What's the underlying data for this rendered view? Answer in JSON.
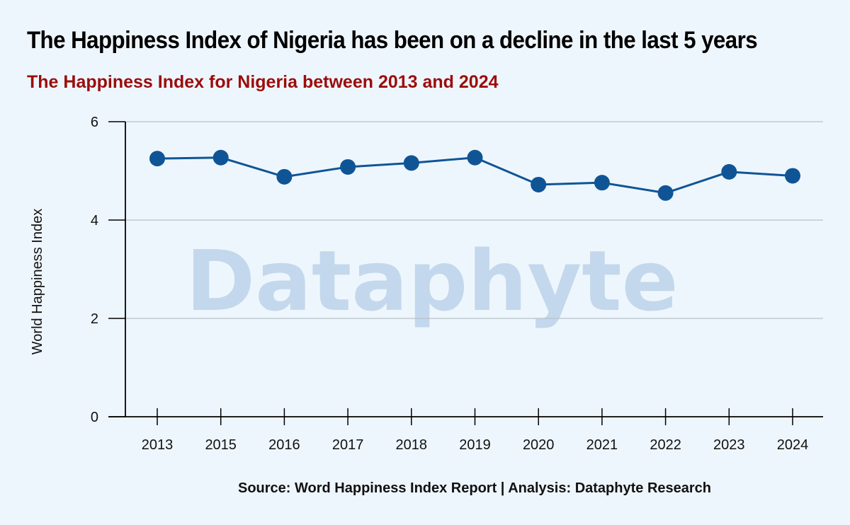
{
  "header": {
    "title": "The Happiness Index of Nigeria has been on a decline in the last 5 years",
    "subtitle": "The Happiness Index for Nigeria between 2013 and 2024"
  },
  "footer": {
    "source": "Source: Word Happiness Index Report | Analysis: Dataphyte Research"
  },
  "watermark": "Dataphyte",
  "colors": {
    "line": "#0f5596",
    "marker": "#0f5596",
    "grid": "#b9c0c8",
    "subtitle": "#9b0c0c",
    "background": "#eef6fd",
    "watermark": "#c3d8ec"
  },
  "chart_data": {
    "type": "line",
    "title": "",
    "xlabel": "",
    "ylabel": "World Happiness Index",
    "categories": [
      "2013",
      "2015",
      "2016",
      "2017",
      "2018",
      "2019",
      "2020",
      "2021",
      "2022",
      "2023",
      "2024"
    ],
    "values": [
      5.25,
      5.27,
      4.88,
      5.08,
      5.16,
      5.27,
      4.72,
      4.76,
      4.55,
      4.98,
      4.9
    ],
    "ylim": [
      0,
      6
    ],
    "yticks": [
      "0",
      "2",
      "4",
      "6"
    ],
    "grid": true,
    "legend": "none",
    "markers": true
  }
}
